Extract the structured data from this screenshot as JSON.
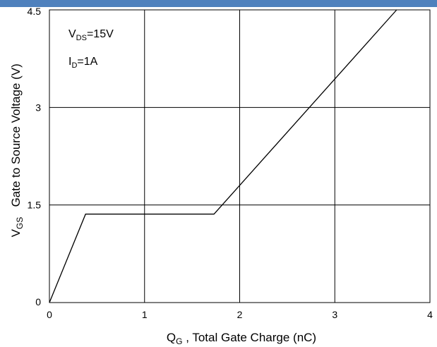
{
  "chart_data": {
    "type": "line",
    "title": "",
    "accent_color": "#4f81bd",
    "xlabel": {
      "main": "Q",
      "sub": "G",
      "rest": " , Total Gate Charge (nC)"
    },
    "ylabel": {
      "main": "V",
      "sub": "GS",
      "rest": "   Gate to Source Voltage (V)"
    },
    "xlim": [
      0,
      4
    ],
    "ylim": [
      0,
      4.5
    ],
    "grid": true,
    "x_ticks": [
      {
        "value": 0,
        "label": "0"
      },
      {
        "value": 1,
        "label": "1"
      },
      {
        "value": 2,
        "label": "2"
      },
      {
        "value": 3,
        "label": "3"
      },
      {
        "value": 4,
        "label": "4"
      }
    ],
    "y_ticks": [
      {
        "value": 0,
        "label": "0"
      },
      {
        "value": 1.5,
        "label": "1.5"
      },
      {
        "value": 3,
        "label": "3"
      },
      {
        "value": 4.5,
        "label": "4.5"
      }
    ],
    "annotations": [
      {
        "main": "V",
        "sub": "DS",
        "rest": "=15V"
      },
      {
        "main": "I",
        "sub": "D",
        "rest": "=1A"
      }
    ],
    "series": [
      {
        "x": [
          0,
          0.38,
          1.73,
          3.65
        ],
        "y": [
          0,
          1.36,
          1.36,
          4.5
        ]
      }
    ]
  }
}
